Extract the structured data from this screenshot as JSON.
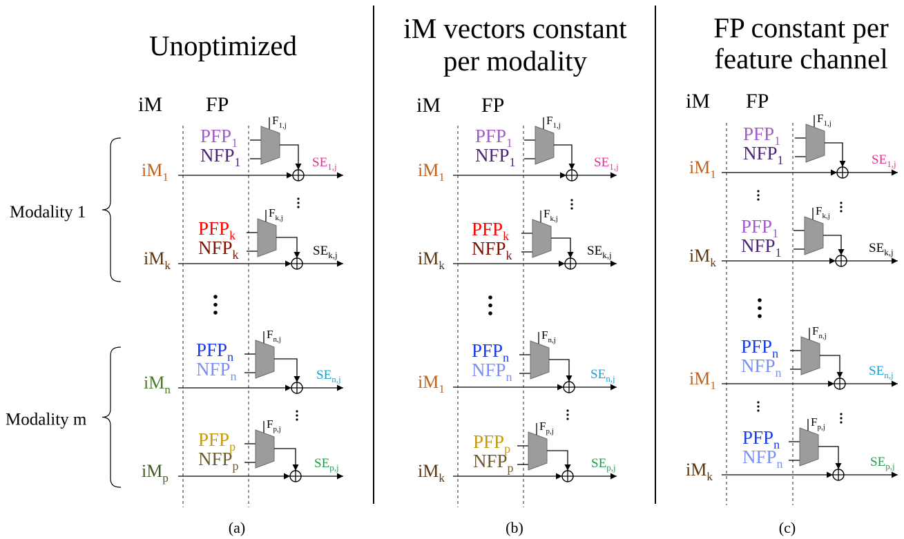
{
  "modality_labels": [
    "Modality 1",
    "Modality m"
  ],
  "panels": [
    {
      "title_lines": [
        "Unoptimized"
      ],
      "headers": {
        "im": "iM",
        "fp": "FP"
      },
      "caption": "(a)",
      "blocks": [
        {
          "pfp": {
            "text": "PFP",
            "sub": "1",
            "color": "#a35ccc"
          },
          "nfp": {
            "text": "NFP",
            "sub": "1",
            "color": "#4b2378"
          },
          "f": {
            "text": "F",
            "sub": "1,j"
          },
          "im": {
            "text": "iM",
            "sub": "1",
            "color": "#c0621f"
          },
          "se": {
            "text": "SE",
            "sub": "1,j",
            "color": "#e0338f"
          }
        },
        {
          "pfp": {
            "text": "PFP",
            "sub": "k",
            "color": "#ff0000"
          },
          "nfp": {
            "text": "NFP",
            "sub": "k",
            "color": "#7a1200"
          },
          "f": {
            "text": "F",
            "sub": "k,j"
          },
          "im": {
            "text": "iM",
            "sub": "k",
            "color": "#5a3510"
          },
          "se": {
            "text": "SE",
            "sub": "k,j",
            "color": "#000000"
          }
        },
        {
          "pfp": {
            "text": "PFP",
            "sub": "n",
            "color": "#1a3be6"
          },
          "nfp": {
            "text": "NFP",
            "sub": "n",
            "color": "#7b8ef2"
          },
          "f": {
            "text": "F",
            "sub": "n,j"
          },
          "im": {
            "text": "iM",
            "sub": "n",
            "color": "#4a7a25"
          },
          "se": {
            "text": "SE",
            "sub": "n,j",
            "color": "#15a0d6"
          }
        },
        {
          "pfp": {
            "text": "PFP",
            "sub": "p",
            "color": "#c49a0e"
          },
          "nfp": {
            "text": "NFP",
            "sub": "p",
            "color": "#6b5a2e"
          },
          "f": {
            "text": "F",
            "sub": "p,j"
          },
          "im": {
            "text": "iM",
            "sub": "p",
            "color": "#3f5a28"
          },
          "se": {
            "text": "SE",
            "sub": "p,j",
            "color": "#1f9a4a"
          }
        }
      ]
    },
    {
      "title_lines": [
        "iM vectors constant",
        "per modality"
      ],
      "headers": {
        "im": "iM",
        "fp": "FP"
      },
      "caption": "(b)",
      "blocks": [
        {
          "pfp": {
            "text": "PFP",
            "sub": "1",
            "color": "#a35ccc"
          },
          "nfp": {
            "text": "NFP",
            "sub": "1",
            "color": "#4b2378"
          },
          "f": {
            "text": "F",
            "sub": "1,j"
          },
          "im": {
            "text": "iM",
            "sub": "1",
            "color": "#c0621f"
          },
          "se": {
            "text": "SE",
            "sub": "1,j",
            "color": "#e0338f"
          }
        },
        {
          "pfp": {
            "text": "PFP",
            "sub": "k",
            "color": "#ff0000"
          },
          "nfp": {
            "text": "NFP",
            "sub": "k",
            "color": "#7a1200"
          },
          "f": {
            "text": "F",
            "sub": "k,j"
          },
          "im": {
            "text": "iM",
            "sub": "k",
            "color": "#5a3510"
          },
          "se": {
            "text": "SE",
            "sub": "k,j",
            "color": "#000000"
          }
        },
        {
          "pfp": {
            "text": "PFP",
            "sub": "n",
            "color": "#1a3be6"
          },
          "nfp": {
            "text": "NFP",
            "sub": "n",
            "color": "#7b8ef2"
          },
          "f": {
            "text": "F",
            "sub": "n,j"
          },
          "im": {
            "text": "iM",
            "sub": "1",
            "color": "#c0621f"
          },
          "se": {
            "text": "SE",
            "sub": "n,j",
            "color": "#15a0d6"
          }
        },
        {
          "pfp": {
            "text": "PFP",
            "sub": "p",
            "color": "#c49a0e"
          },
          "nfp": {
            "text": "NFP",
            "sub": "p",
            "color": "#6b5a2e"
          },
          "f": {
            "text": "F",
            "sub": "p,j"
          },
          "im": {
            "text": "iM",
            "sub": "k",
            "color": "#5a3510"
          },
          "se": {
            "text": "SE",
            "sub": "p,j",
            "color": "#1f9a4a"
          }
        }
      ]
    },
    {
      "title_lines": [
        "FP constant per",
        "feature channel"
      ],
      "headers": {
        "im": "iM",
        "fp": "FP"
      },
      "caption": "(c)",
      "blocks": [
        {
          "pfp": {
            "text": "PFP",
            "sub": "1",
            "color": "#a35ccc"
          },
          "nfp": {
            "text": "NFP",
            "sub": "1",
            "color": "#4b2378"
          },
          "f": {
            "text": "F",
            "sub": "1,j"
          },
          "im": {
            "text": "iM",
            "sub": "1",
            "color": "#c0621f"
          },
          "se": {
            "text": "SE",
            "sub": "1,j",
            "color": "#e0338f"
          }
        },
        {
          "pfp": {
            "text": "PFP",
            "sub": "1",
            "color": "#a35ccc"
          },
          "nfp": {
            "text": "NFP",
            "sub": "1",
            "color": "#4b2378"
          },
          "f": {
            "text": "F",
            "sub": "k,j"
          },
          "im": {
            "text": "iM",
            "sub": "k",
            "color": "#5a3510"
          },
          "se": {
            "text": "SE",
            "sub": "k,j",
            "color": "#000000"
          }
        },
        {
          "pfp": {
            "text": "PFP",
            "sub": "n",
            "color": "#1a3be6"
          },
          "nfp": {
            "text": "NFP",
            "sub": "n",
            "color": "#7b8ef2"
          },
          "f": {
            "text": "F",
            "sub": "n,j"
          },
          "im": {
            "text": "iM",
            "sub": "1",
            "color": "#c0621f"
          },
          "se": {
            "text": "SE",
            "sub": "n,j",
            "color": "#15a0d6"
          }
        },
        {
          "pfp": {
            "text": "PFP",
            "sub": "n",
            "color": "#1a3be6"
          },
          "nfp": {
            "text": "NFP",
            "sub": "n",
            "color": "#7b8ef2"
          },
          "f": {
            "text": "F",
            "sub": "p,j"
          },
          "im": {
            "text": "iM",
            "sub": "k",
            "color": "#5a3510"
          },
          "se": {
            "text": "SE",
            "sub": "p,j",
            "color": "#1f9a4a"
          }
        }
      ]
    }
  ]
}
